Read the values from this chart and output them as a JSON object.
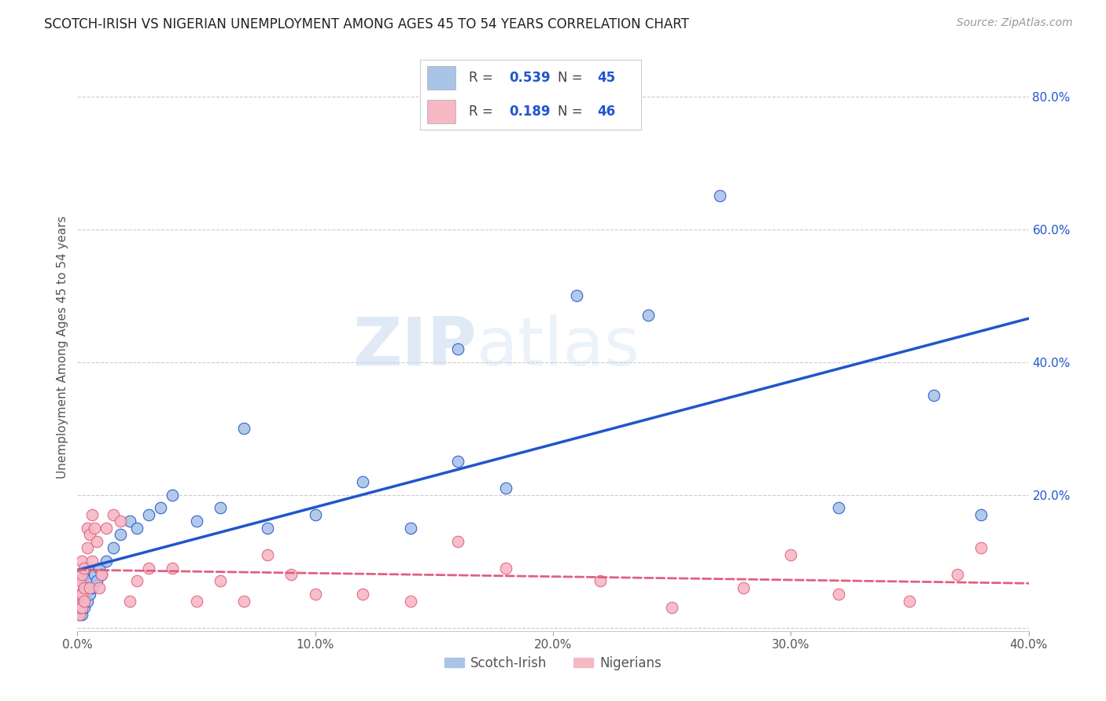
{
  "title": "SCOTCH-IRISH VS NIGERIAN UNEMPLOYMENT AMONG AGES 45 TO 54 YEARS CORRELATION CHART",
  "source": "Source: ZipAtlas.com",
  "ylabel": "Unemployment Among Ages 45 to 54 years",
  "xlim": [
    0.0,
    0.4
  ],
  "ylim": [
    -0.005,
    0.85
  ],
  "xticks": [
    0.0,
    0.1,
    0.2,
    0.3,
    0.4
  ],
  "yticks": [
    0.0,
    0.2,
    0.4,
    0.6,
    0.8
  ],
  "xtick_labels": [
    "0.0%",
    "10.0%",
    "20.0%",
    "30.0%",
    "40.0%"
  ],
  "ytick_labels": [
    "",
    "20.0%",
    "40.0%",
    "60.0%",
    "80.0%"
  ],
  "background_color": "#ffffff",
  "grid_color": "#cccccc",
  "scotch_irish_color": "#aac4e8",
  "nigerian_color": "#f5b8c4",
  "scotch_irish_line_color": "#2255cc",
  "nigerian_line_color": "#e06080",
  "watermark_zip": "ZIP",
  "watermark_atlas": "atlas",
  "legend_R_scotch": "0.539",
  "legend_N_scotch": "45",
  "legend_R_nigerian": "0.189",
  "legend_N_nigerian": "46",
  "scotch_irish_x": [
    0.001,
    0.001,
    0.001,
    0.002,
    0.002,
    0.002,
    0.002,
    0.003,
    0.003,
    0.003,
    0.003,
    0.004,
    0.004,
    0.004,
    0.005,
    0.005,
    0.006,
    0.007,
    0.008,
    0.009,
    0.01,
    0.012,
    0.015,
    0.018,
    0.022,
    0.025,
    0.03,
    0.035,
    0.04,
    0.05,
    0.06,
    0.07,
    0.08,
    0.1,
    0.12,
    0.14,
    0.16,
    0.18,
    0.21,
    0.24,
    0.27,
    0.16,
    0.32,
    0.36,
    0.38
  ],
  "scotch_irish_y": [
    0.02,
    0.03,
    0.04,
    0.02,
    0.03,
    0.05,
    0.07,
    0.03,
    0.04,
    0.06,
    0.08,
    0.04,
    0.06,
    0.09,
    0.05,
    0.07,
    0.06,
    0.08,
    0.07,
    0.09,
    0.08,
    0.1,
    0.12,
    0.14,
    0.16,
    0.15,
    0.17,
    0.18,
    0.2,
    0.16,
    0.18,
    0.3,
    0.15,
    0.17,
    0.22,
    0.15,
    0.42,
    0.21,
    0.5,
    0.47,
    0.65,
    0.25,
    0.18,
    0.35,
    0.17
  ],
  "nigerian_x": [
    0.001,
    0.001,
    0.001,
    0.001,
    0.002,
    0.002,
    0.002,
    0.002,
    0.003,
    0.003,
    0.003,
    0.004,
    0.004,
    0.005,
    0.005,
    0.006,
    0.006,
    0.007,
    0.008,
    0.009,
    0.01,
    0.012,
    0.015,
    0.018,
    0.022,
    0.025,
    0.03,
    0.04,
    0.05,
    0.06,
    0.07,
    0.08,
    0.09,
    0.1,
    0.12,
    0.14,
    0.16,
    0.18,
    0.22,
    0.25,
    0.28,
    0.3,
    0.32,
    0.35,
    0.37,
    0.38
  ],
  "nigerian_y": [
    0.02,
    0.03,
    0.05,
    0.07,
    0.03,
    0.05,
    0.08,
    0.1,
    0.04,
    0.06,
    0.09,
    0.12,
    0.15,
    0.06,
    0.14,
    0.1,
    0.17,
    0.15,
    0.13,
    0.06,
    0.08,
    0.15,
    0.17,
    0.16,
    0.04,
    0.07,
    0.09,
    0.09,
    0.04,
    0.07,
    0.04,
    0.11,
    0.08,
    0.05,
    0.05,
    0.04,
    0.13,
    0.09,
    0.07,
    0.03,
    0.06,
    0.11,
    0.05,
    0.04,
    0.08,
    0.12
  ]
}
